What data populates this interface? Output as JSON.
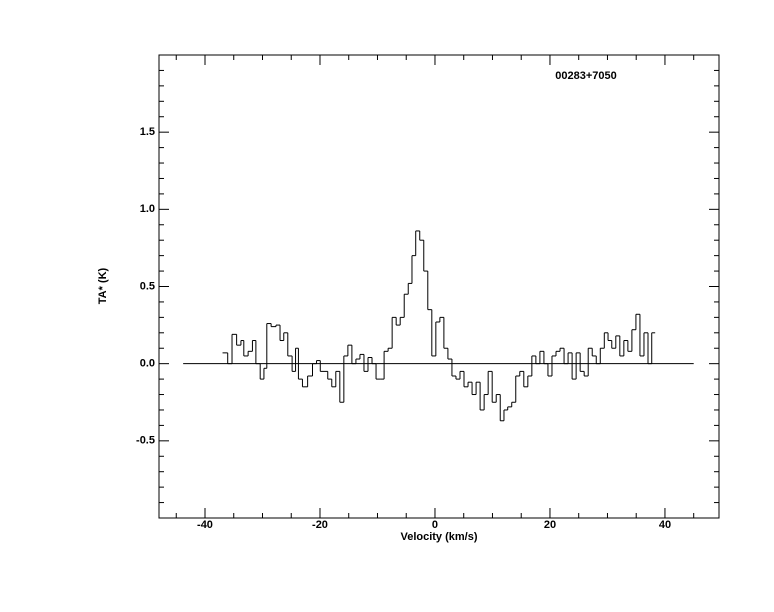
{
  "chart_data": {
    "type": "step",
    "title": "00283+7050",
    "xlabel": "Velocity (km/s)",
    "ylabel": "TA* (K)",
    "xlim": [
      -48,
      49.4
    ],
    "ylim": [
      -1,
      2
    ],
    "xticks": [
      -40,
      -20,
      0,
      20,
      40
    ],
    "yticks": [
      {
        "value": -0.5,
        "label": "-0.5"
      },
      {
        "value": 0,
        "label": "0.0"
      },
      {
        "value": 0.5,
        "label": "0.5"
      },
      {
        "value": 1,
        "label": "1.0"
      },
      {
        "value": 1.5,
        "label": "1.5"
      }
    ],
    "xminorticks": [
      -45,
      -35,
      -30,
      -25,
      -15,
      -10,
      -5,
      5,
      10,
      15,
      25,
      30,
      35,
      45
    ],
    "yminorticks": [
      -0.9,
      -0.8,
      -0.7,
      -0.6,
      -0.4,
      -0.3,
      -0.2,
      -0.1,
      0.1,
      0.2,
      0.3,
      0.4,
      0.6,
      0.7,
      0.8,
      0.9,
      1.1,
      1.2,
      1.3,
      1.4,
      1.6,
      1.7,
      1.8,
      1.9
    ],
    "baseline": {
      "x": [
        -43.8,
        45
      ],
      "y": 0
    },
    "color": "#000000",
    "x": [
      -36.5,
      -35.6,
      -35,
      -34,
      -33.5,
      -33,
      -32,
      -31.5,
      -30.8,
      -30,
      -29.5,
      -29,
      -28,
      -27.3,
      -26.6,
      -26,
      -25.2,
      -24.5,
      -24,
      -23.5,
      -22.6,
      -21.7,
      -20.9,
      -20.3,
      -19.6,
      -19,
      -18.3,
      -17.6,
      -16.9,
      -16.2,
      -15.5,
      -14.8,
      -14.1,
      -13.4,
      -12.7,
      -12,
      -11.3,
      -10.6,
      -9.9,
      -9.2,
      -8.5,
      -7.8,
      -7.1,
      -6.4,
      -5.7,
      -5,
      -4.3,
      -3.7,
      -3,
      -2.3,
      -1.6,
      -0.9,
      -0.2,
      0.5,
      1.2,
      1.9,
      2.6,
      3.3,
      4,
      4.7,
      5.4,
      6.1,
      6.8,
      7.5,
      8.2,
      8.9,
      9.6,
      10.3,
      11,
      11.7,
      12.3,
      13,
      13.7,
      14.4,
      15.1,
      15.8,
      16.5,
      17.2,
      17.9,
      18.6,
      19.3,
      20,
      20.7,
      21.4,
      22.1,
      22.8,
      23.5,
      24.2,
      24.9,
      25.6,
      26.3,
      27,
      27.7,
      28.4,
      29.1,
      29.8,
      30.4,
      31.1,
      31.8,
      32.5,
      33.2,
      33.9,
      34.6,
      35.3,
      36,
      36.7,
      37.4,
      38
    ],
    "values": [
      0.07,
      0.0,
      0.19,
      0.12,
      0.15,
      0.05,
      0.08,
      0.15,
      0.0,
      -0.1,
      -0.03,
      0.26,
      0.24,
      0.25,
      0.15,
      0.2,
      0.05,
      -0.05,
      0.1,
      -0.1,
      -0.15,
      -0.08,
      0.0,
      0.02,
      -0.05,
      -0.05,
      -0.1,
      -0.15,
      -0.05,
      -0.25,
      0.05,
      0.12,
      0.0,
      0.03,
      0.06,
      -0.05,
      0.04,
      0.0,
      -0.1,
      -0.1,
      0.08,
      0.1,
      0.3,
      0.25,
      0.3,
      0.45,
      0.52,
      0.7,
      0.86,
      0.8,
      0.6,
      0.35,
      0.05,
      0.27,
      0.3,
      0.1,
      0.03,
      -0.08,
      -0.1,
      -0.05,
      -0.15,
      -0.12,
      -0.2,
      -0.12,
      -0.3,
      -0.2,
      -0.05,
      -0.25,
      -0.2,
      -0.37,
      -0.3,
      -0.28,
      -0.25,
      -0.08,
      -0.05,
      -0.15,
      -0.08,
      0.05,
      0.0,
      0.08,
      0.0,
      -0.08,
      0.05,
      0.08,
      0.1,
      0.0,
      0.07,
      -0.1,
      0.07,
      -0.05,
      -0.08,
      0.1,
      0.05,
      0.0,
      0.1,
      0.2,
      0.15,
      0.1,
      0.18,
      0.05,
      0.15,
      0.08,
      0.22,
      0.32,
      0.05,
      0.2,
      0.0,
      0.2
    ]
  }
}
